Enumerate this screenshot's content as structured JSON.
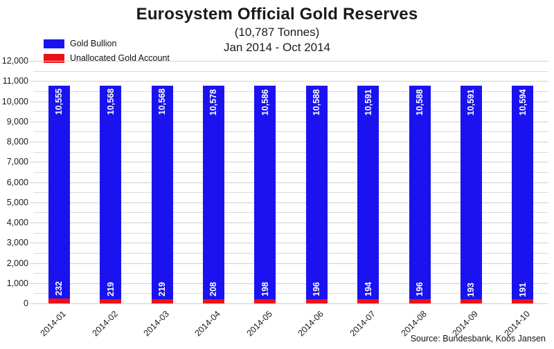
{
  "header": {
    "title": "Eurosystem Official Gold Reserves",
    "subtitle1": "(10,787 Tonnes)",
    "subtitle2": "Jan 2014 - Oct 2014"
  },
  "legend": [
    {
      "label": "Gold Bullion",
      "color": "#1a13ef"
    },
    {
      "label": "Unallocated Gold Account",
      "color": "#ec1115"
    }
  ],
  "source": "Source: Bundesbank, Koos Jansen",
  "colors": {
    "gold_bullion": "#1a13ef",
    "unallocated": "#ec1115",
    "gridline_minor": "#d9d9d9",
    "gridline_major": "#cfcfcf",
    "bar_value_text": "#ffffff"
  },
  "chart_data": {
    "type": "bar",
    "stacked": true,
    "title": "Eurosystem Official Gold Reserves",
    "subtitle": "(10,787 Tonnes)",
    "period_label": "Jan 2014 - Oct 2014",
    "categories": [
      "2014-01",
      "2014-02",
      "2014-03",
      "2014-04",
      "2014-05",
      "2014-06",
      "2014-07",
      "2014-08",
      "2014-09",
      "2014-10"
    ],
    "series": [
      {
        "name": "Unallocated Gold Account",
        "color": "#ec1115",
        "values": [
          232,
          219,
          219,
          208,
          198,
          196,
          194,
          196,
          193,
          191
        ]
      },
      {
        "name": "Gold Bullion",
        "color": "#1a13ef",
        "values": [
          10555,
          10568,
          10568,
          10578,
          10586,
          10588,
          10591,
          10588,
          10591,
          10594
        ]
      }
    ],
    "xlabel": "",
    "ylabel": "",
    "ylim": [
      0,
      12000
    ],
    "y_major_step": 1000,
    "y_minor_step": 500,
    "y_tick_labels": [
      "0",
      "1,000",
      "2,000",
      "3,000",
      "4,000",
      "5,000",
      "6,000",
      "7,000",
      "8,000",
      "9,000",
      "10,000",
      "11,000",
      "12,000"
    ],
    "grid": true,
    "legend_position": "top-left",
    "value_labels": "inside-rotated-90"
  }
}
